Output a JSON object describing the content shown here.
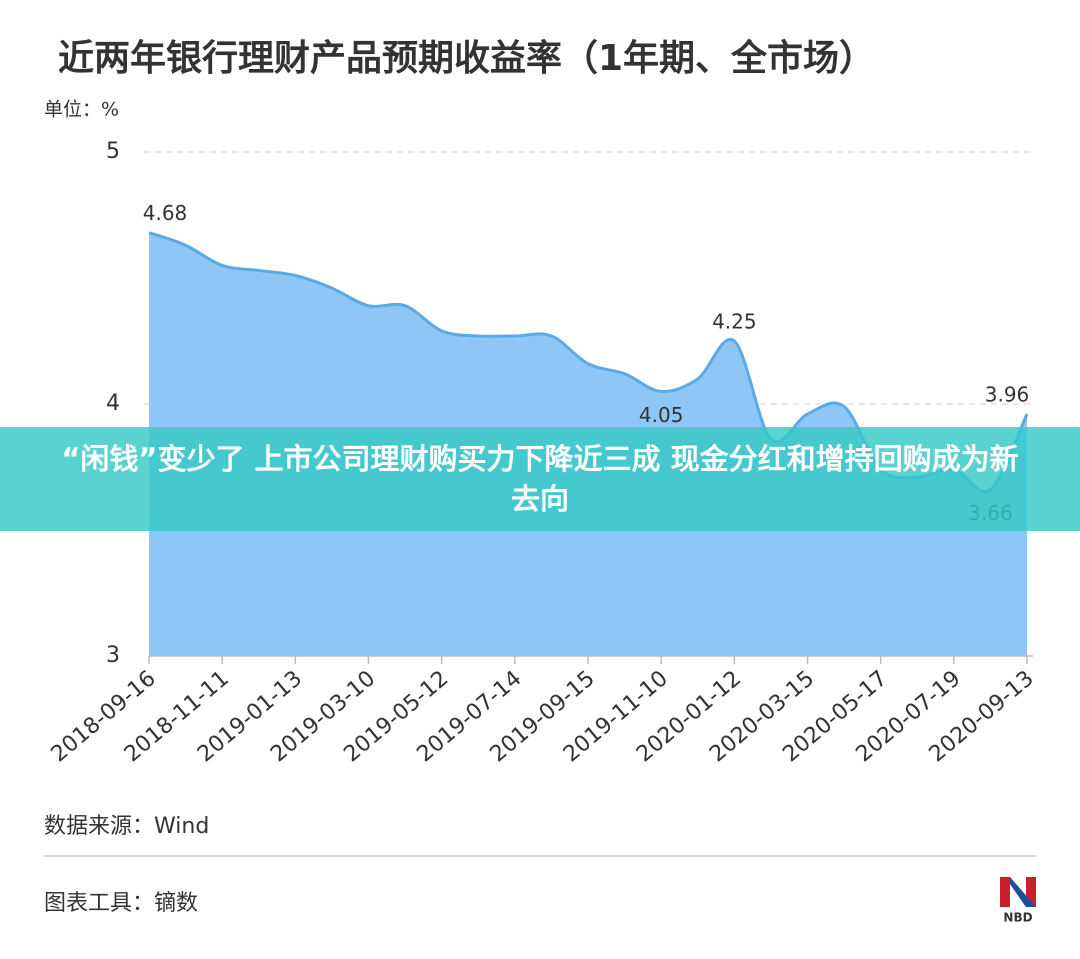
{
  "chart_data": {
    "type": "area",
    "title": "近两年银行理财产品预期收益率（1年期、全市场）",
    "unit_label": "单位：%",
    "categories": [
      "2018-09-16",
      null,
      "2018-11-11",
      null,
      "2019-01-13",
      null,
      "2019-03-10",
      null,
      "2019-05-12",
      null,
      "2019-07-14",
      null,
      "2019-09-15",
      null,
      "2019-11-10",
      null,
      "2020-01-12",
      null,
      "2020-03-15",
      null,
      "2020-05-17",
      null,
      "2020-07-19",
      null,
      "2020-09-13"
    ],
    "values": [
      4.68,
      4.63,
      4.55,
      4.53,
      4.51,
      4.46,
      4.39,
      4.39,
      4.29,
      4.27,
      4.27,
      4.27,
      4.16,
      4.12,
      4.05,
      4.1,
      4.25,
      3.86,
      3.96,
      3.99,
      3.74,
      3.71,
      3.74,
      3.66,
      3.96
    ],
    "value_labels": [
      "4.68",
      null,
      null,
      null,
      null,
      null,
      null,
      null,
      null,
      null,
      null,
      null,
      null,
      null,
      "4.05",
      null,
      "4.25",
      null,
      null,
      null,
      null,
      null,
      null,
      "3.66",
      "3.96"
    ],
    "color": "#8ec6f5",
    "line_color": "#5aaae6",
    "ylim": [
      3,
      5
    ],
    "yticks": [
      3,
      4,
      5
    ],
    "grid": true,
    "source": "数据来源：Wind",
    "tool": "图表工具：镝数"
  },
  "banner": {
    "text": "“闲钱”变少了 上市公司理财购买力下降近三成 现金分红和增持回购成为新去向"
  },
  "logo": {
    "text": "NBD"
  }
}
